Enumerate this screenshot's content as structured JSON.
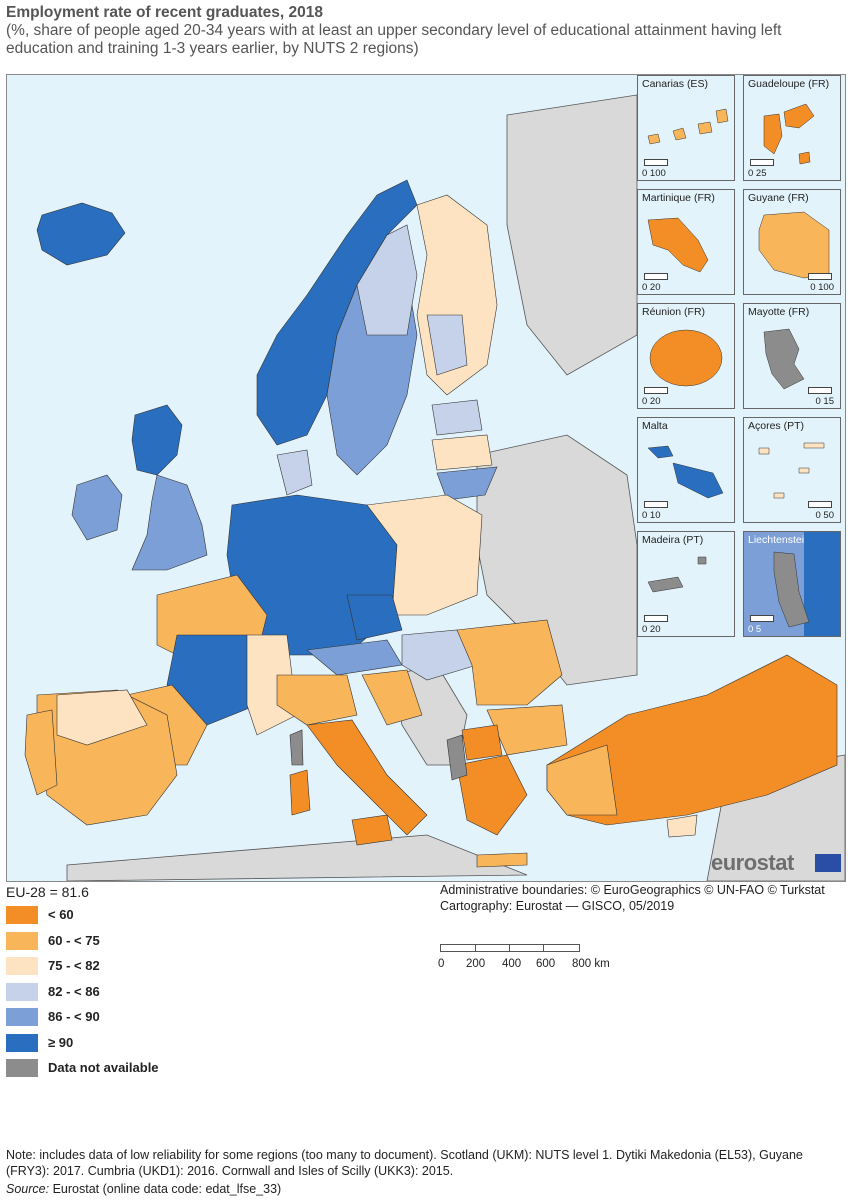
{
  "title": "Employment rate of recent graduates, 2018",
  "subtitle": "(%, share of people aged 20-34 years with at least an upper secondary level of educational attainment having left education and training 1-3 years earlier, by NUTS 2 regions)",
  "colors": {
    "sea": "#e3f3fb",
    "non_eu": "#d9d9d9",
    "lt60": "#f38e26",
    "60_75": "#f8b55a",
    "75_82": "#fde3c1",
    "82_86": "#c6d2ea",
    "86_90": "#7b9fd6",
    "ge90": "#2a6fbf",
    "na": "#8c8c8c"
  },
  "insets": [
    {
      "name": "Canarias (ES)",
      "scale": "0  100"
    },
    {
      "name": "Guadeloupe (FR)",
      "scale": "0  25"
    },
    {
      "name": "Martinique (FR)",
      "scale": "0  20"
    },
    {
      "name": "Guyane (FR)",
      "scale": "0  100"
    },
    {
      "name": "Réunion (FR)",
      "scale": "0  20"
    },
    {
      "name": "Mayotte (FR)",
      "scale": "0  15"
    },
    {
      "name": "Malta",
      "scale": "0  10"
    },
    {
      "name": "Açores (PT)",
      "scale": "0  50"
    },
    {
      "name": "Madeira (PT)",
      "scale": "0  20"
    },
    {
      "name": "Liechtenstein",
      "scale": "0  5"
    }
  ],
  "logo": "eurostat",
  "eu_value": "EU-28 = 81.6",
  "legend": [
    {
      "label": "< 60",
      "color": "#f38e26"
    },
    {
      "label": "60 - < 75",
      "color": "#f8b55a"
    },
    {
      "label": "75 - < 82",
      "color": "#fde3c1"
    },
    {
      "label": "82 - < 86",
      "color": "#c6d2ea"
    },
    {
      "label": "86 - < 90",
      "color": "#7b9fd6"
    },
    {
      "label": "≥ 90",
      "color": "#2a6fbf"
    },
    {
      "label": "Data not available",
      "color": "#8c8c8c"
    }
  ],
  "credits": {
    "line1": "Administrative boundaries: © EuroGeographics © UN-FAO © Turkstat",
    "line2": "Cartography: Eurostat — GISCO, 05/2019"
  },
  "km_scale": {
    "ticks": [
      "0",
      "200",
      "400",
      "600",
      "800 km"
    ]
  },
  "note": "Note: includes data of low reliability for some regions (too many to document). Scotland (UKM): NUTS level 1. Dytiki Makedonia (EL53), Guyane (FRY3): 2017. Cumbria (UKD1): 2016. Cornwall and Isles of Scilly (UKK3): 2015.",
  "source_label": "Source:",
  "source_text": " Eurostat (online data code: edat_lfse_33)"
}
